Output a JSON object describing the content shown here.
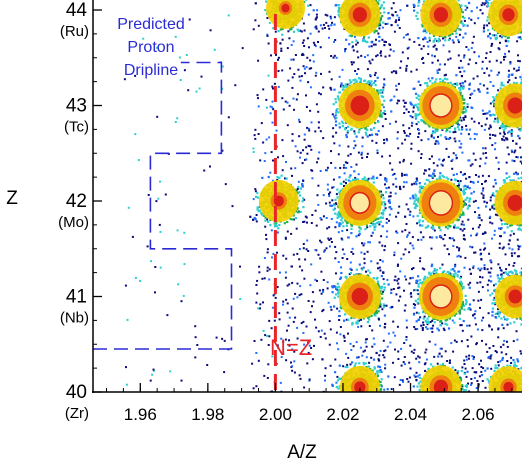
{
  "chart_data": {
    "type": "heatmap",
    "title": "",
    "xlabel": "A/Z",
    "ylabel": "Z",
    "xlim": [
      1.946,
      2.073
    ],
    "ylim": [
      40,
      44
    ],
    "x_ticks": [
      {
        "value": 1.96,
        "label": "1.96"
      },
      {
        "value": 1.98,
        "label": "1.98"
      },
      {
        "value": 2.0,
        "label": "2.00"
      },
      {
        "value": 2.02,
        "label": "2.02"
      },
      {
        "value": 2.04,
        "label": "2.04"
      },
      {
        "value": 2.06,
        "label": "2.06"
      }
    ],
    "y_ticks": [
      {
        "value": 40,
        "label": "40",
        "element": "(Zr)"
      },
      {
        "value": 41,
        "label": "41",
        "element": "(Nb)"
      },
      {
        "value": 42,
        "label": "42",
        "element": "(Mo)"
      },
      {
        "value": 43,
        "label": "43",
        "element": "(Tc)"
      },
      {
        "value": 44,
        "label": "44",
        "element": "(Ru)"
      }
    ],
    "annotations": {
      "dripline_label": [
        "Predicted",
        "Proton",
        "Dripline"
      ],
      "nz_label": "N=Z",
      "nz_line_x": 2.0
    },
    "dripline_path": [
      [
        1.946,
        40.45
      ],
      [
        1.987,
        40.45
      ],
      [
        1.987,
        41.5
      ],
      [
        1.963,
        41.5
      ],
      [
        1.963,
        42.5
      ],
      [
        1.984,
        42.5
      ],
      [
        1.984,
        43.45
      ],
      [
        1.972,
        43.45
      ]
    ],
    "clusters": [
      {
        "x": 2.003,
        "y": 44.02,
        "intensity": 0.25
      },
      {
        "x": 2.025,
        "y": 43.95,
        "intensity": 0.55
      },
      {
        "x": 2.049,
        "y": 43.95,
        "intensity": 0.55
      },
      {
        "x": 2.069,
        "y": 43.95,
        "intensity": 0.45
      },
      {
        "x": 2.025,
        "y": 43.0,
        "intensity": 0.75
      },
      {
        "x": 2.049,
        "y": 43.0,
        "intensity": 0.95
      },
      {
        "x": 2.071,
        "y": 43.0,
        "intensity": 0.6
      },
      {
        "x": 2.001,
        "y": 42.0,
        "intensity": 0.35
      },
      {
        "x": 2.025,
        "y": 41.98,
        "intensity": 0.85
      },
      {
        "x": 2.049,
        "y": 41.98,
        "intensity": 1.0
      },
      {
        "x": 2.071,
        "y": 41.98,
        "intensity": 0.6
      },
      {
        "x": 2.025,
        "y": 41.0,
        "intensity": 0.65
      },
      {
        "x": 2.049,
        "y": 41.0,
        "intensity": 0.95
      },
      {
        "x": 2.071,
        "y": 41.0,
        "intensity": 0.5
      },
      {
        "x": 2.025,
        "y": 40.05,
        "intensity": 0.4
      },
      {
        "x": 2.049,
        "y": 40.05,
        "intensity": 0.55
      },
      {
        "x": 2.069,
        "y": 40.05,
        "intensity": 0.35
      }
    ],
    "colors": {
      "dripline": "#2b2bd6",
      "nz": "#e8262a",
      "scale": [
        "#0a0a7a",
        "#1f6fff",
        "#2ecfd0",
        "#22b04a",
        "#f4d000",
        "#f07a10",
        "#d81818",
        "#fff6a8"
      ]
    }
  }
}
